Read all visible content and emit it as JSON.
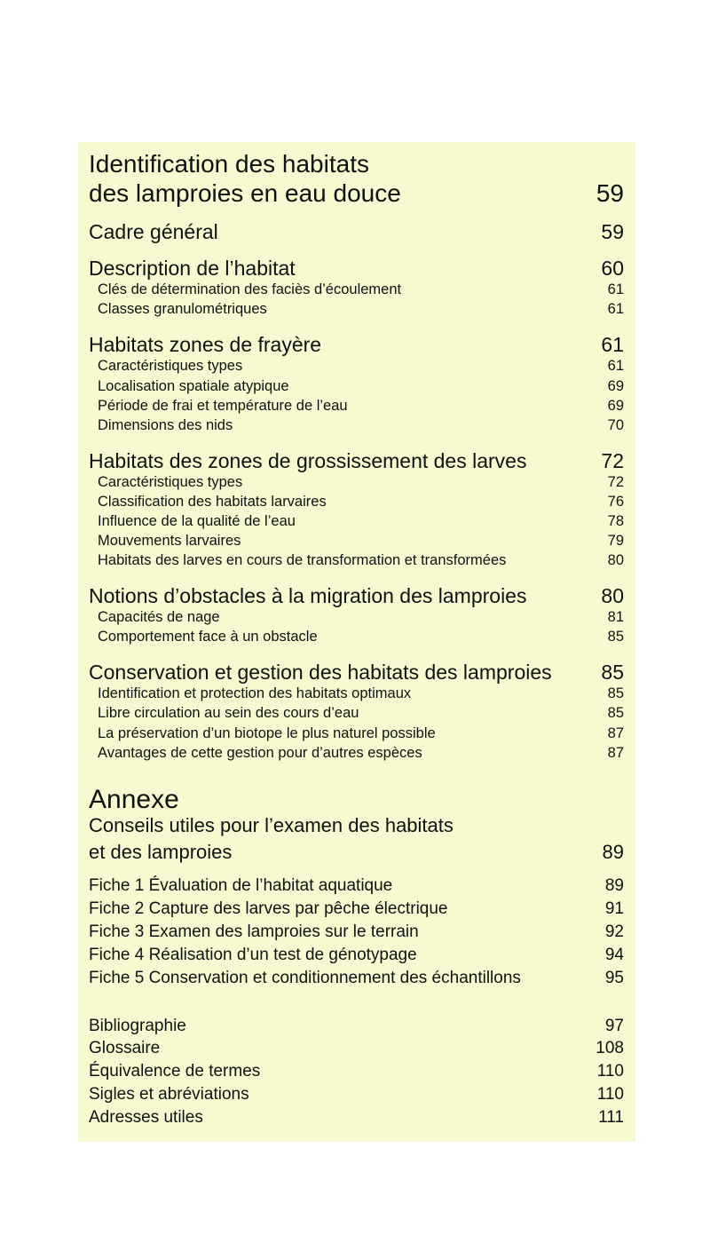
{
  "toc": {
    "background_color": "#f7fad0",
    "entries": [
      {
        "label": "Identification des habitats",
        "page": "",
        "level": "title"
      },
      {
        "label": "des lamproies en eau douce",
        "page": "59",
        "level": "title"
      },
      {
        "label": "Cadre général",
        "page": "59",
        "level": "h1"
      },
      {
        "label": "Description de l’habitat",
        "page": "60",
        "level": "h1"
      },
      {
        "label": "Clés de détermination des faciès d’écoulement",
        "page": "61",
        "level": "sub"
      },
      {
        "label": "Classes granulométriques",
        "page": "61",
        "level": "sub"
      },
      {
        "label": "Habitats zones de frayère",
        "page": "61",
        "level": "h1"
      },
      {
        "label": "Caractéristiques types",
        "page": "61",
        "level": "sub"
      },
      {
        "label": "Localisation spatiale atypique",
        "page": "69",
        "level": "sub"
      },
      {
        "label": "Période de frai et température de l’eau",
        "page": "69",
        "level": "sub"
      },
      {
        "label": "Dimensions des nids",
        "page": "70",
        "level": "sub"
      },
      {
        "label": "Habitats des zones de grossissement des larves",
        "page": "72",
        "level": "h1"
      },
      {
        "label": "Caractéristiques types",
        "page": "72",
        "level": "sub"
      },
      {
        "label": "Classification des habitats larvaires",
        "page": "76",
        "level": "sub"
      },
      {
        "label": "Influence de la qualité de l’eau",
        "page": "78",
        "level": "sub"
      },
      {
        "label": "Mouvements larvaires",
        "page": "79",
        "level": "sub"
      },
      {
        "label": "Habitats des larves en cours de transformation et transformées",
        "page": "80",
        "level": "sub"
      },
      {
        "label": "Notions d’obstacles à la migration des lamproies",
        "page": "80",
        "level": "h1"
      },
      {
        "label": "Capacités de nage",
        "page": "81",
        "level": "sub"
      },
      {
        "label": "Comportement face à un obstacle",
        "page": "85",
        "level": "sub"
      },
      {
        "label": "Conservation et gestion des habitats des lamproies",
        "page": "85",
        "level": "h1"
      },
      {
        "label": "Identification et protection des habitats optimaux",
        "page": "85",
        "level": "sub"
      },
      {
        "label": "Libre circulation au sein des cours d’eau",
        "page": "85",
        "level": "sub"
      },
      {
        "label": "La préservation d’un biotope le plus naturel possible",
        "page": "87",
        "level": "sub"
      },
      {
        "label": "Avantages de cette gestion pour d’autres espèces",
        "page": "87",
        "level": "sub"
      },
      {
        "label": "Annexe",
        "page": "",
        "level": "annexe"
      },
      {
        "label": "Conseils utiles pour l’examen des habitats",
        "page": "",
        "level": "conseil"
      },
      {
        "label": "et des lamproies",
        "page": "89",
        "level": "conseil"
      },
      {
        "label": "Fiche 1 Évaluation de l’habitat aquatique",
        "page": "89",
        "level": "fiche"
      },
      {
        "label": "Fiche 2 Capture des larves par pêche électrique",
        "page": "91",
        "level": "fiche"
      },
      {
        "label": "Fiche 3 Examen des lamproies sur le terrain",
        "page": "92",
        "level": "fiche"
      },
      {
        "label": "Fiche 4 Réalisation d’un test de génotypage",
        "page": "94",
        "level": "fiche"
      },
      {
        "label": "Fiche 5 Conservation et conditionnement des échantillons",
        "page": "95",
        "level": "fiche"
      },
      {
        "label": "Bibliographie",
        "page": "97",
        "level": "fiche"
      },
      {
        "label": "Glossaire",
        "page": "108",
        "level": "fiche"
      },
      {
        "label": "Équivalence de termes",
        "page": "110",
        "level": "fiche"
      },
      {
        "label": "Sigles et abréviations",
        "page": "110",
        "level": "fiche"
      },
      {
        "label": "Adresses utiles",
        "page": "111",
        "level": "fiche"
      }
    ]
  }
}
